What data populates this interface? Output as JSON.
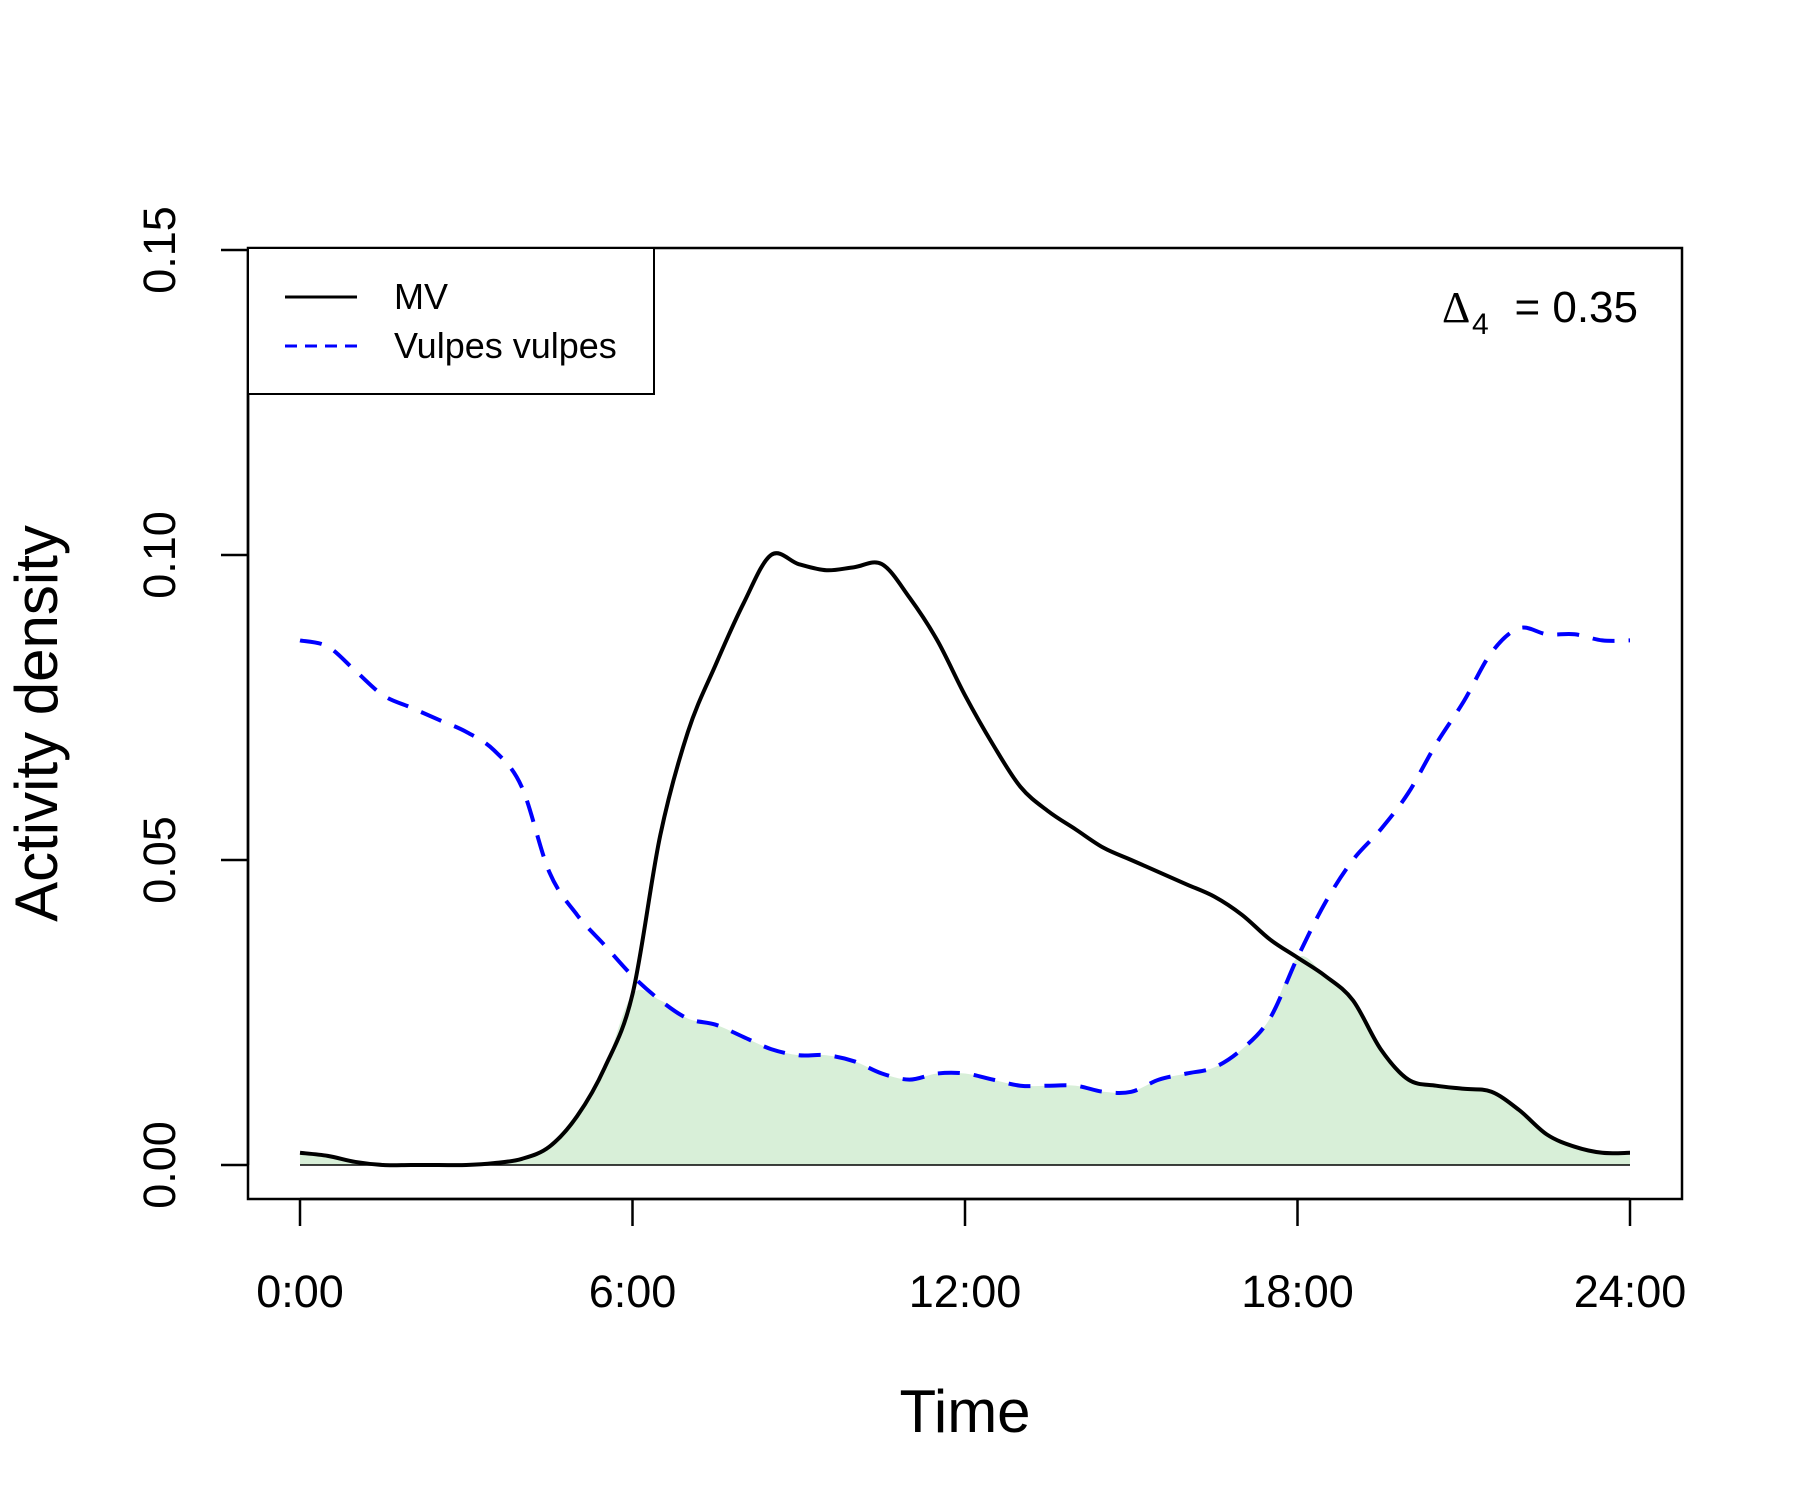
{
  "chart_data": {
    "type": "line",
    "xlabel": "Time",
    "ylabel": "Activity density",
    "xlim": [
      0,
      24
    ],
    "ylim": [
      0,
      0.15
    ],
    "x_ticks": [
      {
        "value": 0,
        "label": "0:00"
      },
      {
        "value": 6,
        "label": "6:00"
      },
      {
        "value": 12,
        "label": "12:00"
      },
      {
        "value": 18,
        "label": "18:00"
      },
      {
        "value": 24,
        "label": "24:00"
      }
    ],
    "y_ticks": [
      {
        "value": 0,
        "label": "0.00"
      },
      {
        "value": 0.05,
        "label": "0.05"
      },
      {
        "value": 0.1,
        "label": "0.10"
      },
      {
        "value": 0.15,
        "label": "0.15"
      }
    ],
    "legend_position": "top-left",
    "annotation": {
      "symbol": "Δ",
      "subscript": "4",
      "text": "= 0.35"
    },
    "overlap_fill_color": "#d8efd8",
    "series": [
      {
        "name": "MV",
        "color": "#000000",
        "line_style": "solid",
        "x": [
          0,
          0.5,
          1,
          1.5,
          2,
          2.5,
          3,
          3.5,
          4,
          4.5,
          5,
          5.5,
          6,
          6.5,
          7,
          7.5,
          8,
          8.5,
          9,
          9.5,
          10,
          10.5,
          11,
          11.5,
          12,
          12.5,
          13,
          13.5,
          14,
          14.5,
          15,
          15.5,
          16,
          16.5,
          17,
          17.5,
          18,
          18.5,
          19,
          19.5,
          20,
          20.5,
          21,
          21.5,
          22,
          22.5,
          23,
          23.5,
          24
        ],
        "values": [
          0.002,
          0.0015,
          0.0005,
          0,
          0,
          0,
          0,
          0.0003,
          0.001,
          0.003,
          0.008,
          0.016,
          0.028,
          0.054,
          0.071,
          0.082,
          0.092,
          0.1,
          0.0985,
          0.0975,
          0.098,
          0.0985,
          0.093,
          0.086,
          0.077,
          0.069,
          0.062,
          0.058,
          0.055,
          0.052,
          0.05,
          0.048,
          0.046,
          0.044,
          0.041,
          0.037,
          0.034,
          0.031,
          0.027,
          0.019,
          0.014,
          0.013,
          0.0125,
          0.012,
          0.009,
          0.005,
          0.003,
          0.002,
          0.002
        ]
      },
      {
        "name": "Vulpes vulpes",
        "color": "#0000ff",
        "line_style": "dashed",
        "x": [
          0,
          0.5,
          1,
          1.5,
          2,
          2.5,
          3,
          3.5,
          4,
          4.5,
          5,
          5.5,
          6,
          6.5,
          7,
          7.5,
          8,
          8.5,
          9,
          9.5,
          10,
          10.5,
          11,
          11.5,
          12,
          12.5,
          13,
          13.5,
          14,
          14.5,
          15,
          15.5,
          16,
          16.5,
          17,
          17.5,
          18,
          18.5,
          19,
          19.5,
          20,
          20.5,
          21,
          21.5,
          22,
          22.5,
          23,
          23.5,
          24
        ],
        "values": [
          0.086,
          0.085,
          0.081,
          0.077,
          0.075,
          0.073,
          0.071,
          0.068,
          0.062,
          0.048,
          0.041,
          0.036,
          0.031,
          0.027,
          0.024,
          0.023,
          0.021,
          0.019,
          0.018,
          0.018,
          0.017,
          0.015,
          0.014,
          0.015,
          0.015,
          0.014,
          0.013,
          0.013,
          0.013,
          0.012,
          0.012,
          0.014,
          0.015,
          0.016,
          0.019,
          0.024,
          0.034,
          0.043,
          0.05,
          0.055,
          0.061,
          0.069,
          0.076,
          0.084,
          0.088,
          0.087,
          0.087,
          0.086,
          0.086
        ]
      }
    ]
  }
}
